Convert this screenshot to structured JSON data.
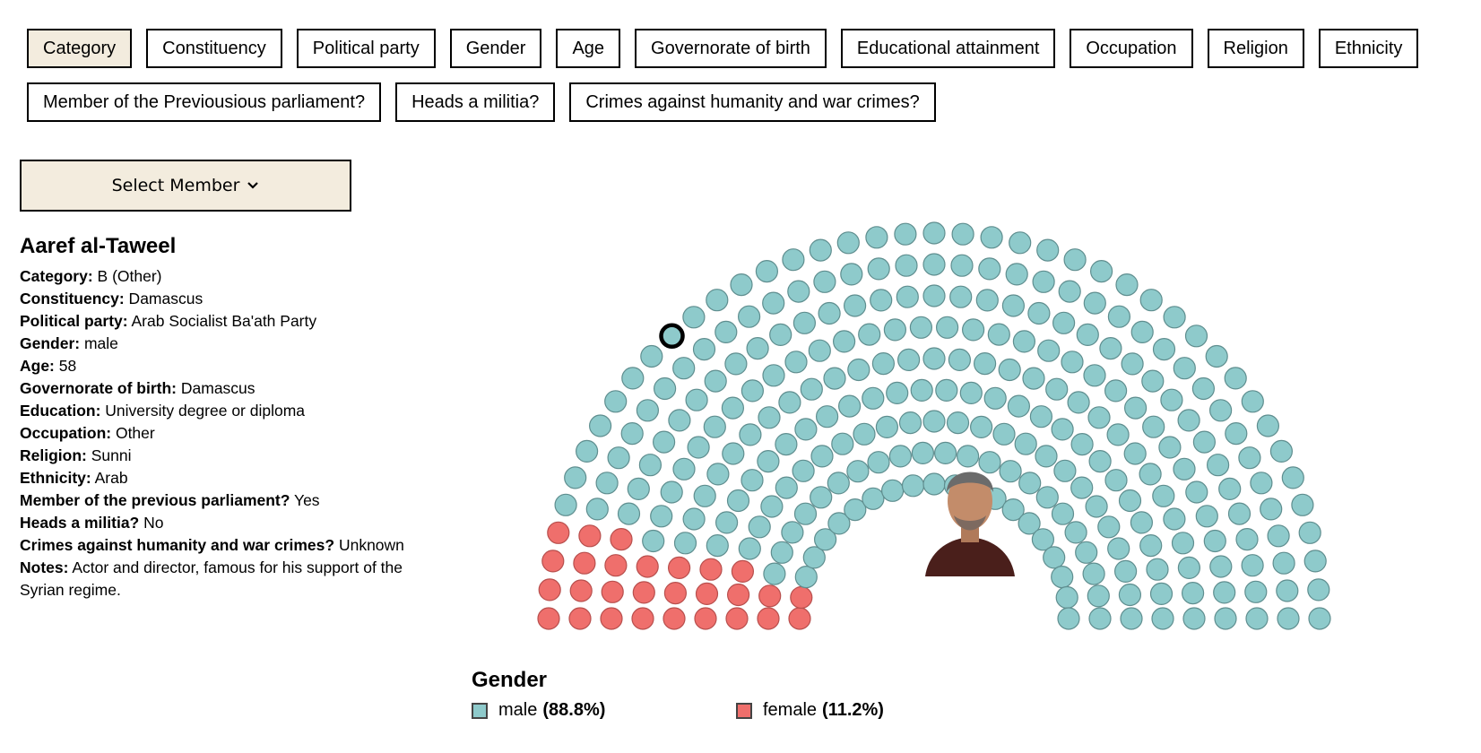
{
  "filters": {
    "row1": [
      "Category",
      "Constituency",
      "Political party",
      "Gender",
      "Age",
      "Governorate of birth",
      "Educational attainment",
      "Occupation",
      "Religion",
      "Ethnicity"
    ],
    "row2": [
      "Member of the Previousious parliament?",
      "Heads a militia?",
      "Crimes against humanity and war crimes?"
    ],
    "active": "Category"
  },
  "select_member": {
    "label": "Select Member"
  },
  "member": {
    "name": "Aaref al-Taweel",
    "fields": [
      {
        "label": "Category:",
        "value": "B (Other)"
      },
      {
        "label": "Constituency:",
        "value": "Damascus"
      },
      {
        "label": "Political party:",
        "value": "Arab Socialist Ba'ath Party"
      },
      {
        "label": "Gender:",
        "value": "male"
      },
      {
        "label": "Age:",
        "value": "58"
      },
      {
        "label": "Governorate of birth:",
        "value": "Damascus"
      },
      {
        "label": "Education:",
        "value": "University degree or diploma"
      },
      {
        "label": "Occupation:",
        "value": "Other"
      },
      {
        "label": "Religion:",
        "value": "Sunni"
      },
      {
        "label": "Ethnicity:",
        "value": "Arab"
      },
      {
        "label": "Member of the previous parliament?",
        "value": "Yes"
      },
      {
        "label": "Heads a militia?",
        "value": "No"
      },
      {
        "label": "Crimes against humanity and war crimes?",
        "value": "Unknown"
      },
      {
        "label": "Notes:",
        "value": "Actor and director, famous for his support of the Syrian regime."
      }
    ]
  },
  "chamber": {
    "female_count": 28,
    "colors": {
      "male": "#8ecacb",
      "female": "#ef6f6c",
      "stroke": "#5f8e8f",
      "female_stroke": "#b84f4d"
    }
  },
  "legend": {
    "title": "Gender",
    "items": [
      {
        "name": "male",
        "pct": "(88.8%)",
        "color": "#8ecacb"
      },
      {
        "name": "female",
        "pct": "(11.2%)",
        "color": "#ef6f6c"
      }
    ]
  }
}
